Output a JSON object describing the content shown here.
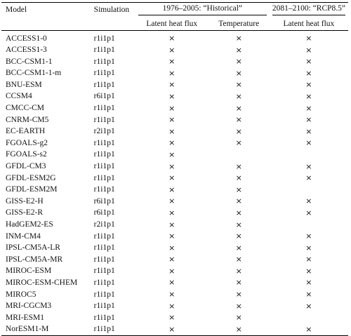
{
  "header": {
    "model": "Model",
    "simulation": "Simulation",
    "historical_period": "1976–2005: “Historical”",
    "rcp_period": "2081–2100: “RCP8.5”",
    "latent_heat_flux": "Latent heat flux",
    "temperature": "Temperature",
    "latent_heat_flux_rcp": "Latent heat flux"
  },
  "mark_symbol": "×",
  "rows": [
    {
      "model": "ACCESS1-0",
      "sim": "r1i1p1",
      "lh": true,
      "temp": true,
      "rcp": true
    },
    {
      "model": "ACCESS1-3",
      "sim": "r1i1p1",
      "lh": true,
      "temp": true,
      "rcp": true
    },
    {
      "model": "BCC-CSM1-1",
      "sim": "r1i1p1",
      "lh": true,
      "temp": true,
      "rcp": true
    },
    {
      "model": "BCC-CSM1-1-m",
      "sim": "r1i1p1",
      "lh": true,
      "temp": true,
      "rcp": true
    },
    {
      "model": "BNU-ESM",
      "sim": "r1i1p1",
      "lh": true,
      "temp": true,
      "rcp": true
    },
    {
      "model": "CCSM4",
      "sim": "r6i1p1",
      "lh": true,
      "temp": true,
      "rcp": true
    },
    {
      "model": "CMCC-CM",
      "sim": "r1i1p1",
      "lh": true,
      "temp": true,
      "rcp": true
    },
    {
      "model": "CNRM-CM5",
      "sim": "r1i1p1",
      "lh": true,
      "temp": true,
      "rcp": true
    },
    {
      "model": "EC-EARTH",
      "sim": "r2i1p1",
      "lh": true,
      "temp": true,
      "rcp": true
    },
    {
      "model": "FGOALS-g2",
      "sim": "r1i1p1",
      "lh": true,
      "temp": true,
      "rcp": true
    },
    {
      "model": "FGOALS-s2",
      "sim": "r1i1p1",
      "lh": true,
      "temp": false,
      "rcp": false
    },
    {
      "model": "GFDL-CM3",
      "sim": "r1i1p1",
      "lh": true,
      "temp": true,
      "rcp": true
    },
    {
      "model": "GFDL-ESM2G",
      "sim": "r1i1p1",
      "lh": true,
      "temp": true,
      "rcp": true
    },
    {
      "model": "GFDL-ESM2M",
      "sim": "r1i1p1",
      "lh": true,
      "temp": true,
      "rcp": false
    },
    {
      "model": "GISS-E2-H",
      "sim": "r6i1p1",
      "lh": true,
      "temp": true,
      "rcp": true
    },
    {
      "model": "GISS-E2-R",
      "sim": "r6i1p1",
      "lh": true,
      "temp": true,
      "rcp": true
    },
    {
      "model": "HadGEM2-ES",
      "sim": "r2i1p1",
      "lh": true,
      "temp": true,
      "rcp": false
    },
    {
      "model": "INM-CM4",
      "sim": "r1i1p1",
      "lh": true,
      "temp": true,
      "rcp": true
    },
    {
      "model": "IPSL-CM5A-LR",
      "sim": "r1i1p1",
      "lh": true,
      "temp": true,
      "rcp": true
    },
    {
      "model": "IPSL-CM5A-MR",
      "sim": "r1i1p1",
      "lh": true,
      "temp": true,
      "rcp": true
    },
    {
      "model": "MIROC-ESM",
      "sim": "r1i1p1",
      "lh": true,
      "temp": true,
      "rcp": true
    },
    {
      "model": "MIROC-ESM-CHEM",
      "sim": "r1i1p1",
      "lh": true,
      "temp": true,
      "rcp": true
    },
    {
      "model": "MIROC5",
      "sim": "r1i1p1",
      "lh": true,
      "temp": true,
      "rcp": true
    },
    {
      "model": "MRI-CGCM3",
      "sim": "r1i1p1",
      "lh": true,
      "temp": true,
      "rcp": true
    },
    {
      "model": "MRI-ESM1",
      "sim": "r1i1p1",
      "lh": true,
      "temp": true,
      "rcp": false
    },
    {
      "model": "NorESM1-M",
      "sim": "r1i1p1",
      "lh": true,
      "temp": true,
      "rcp": true
    }
  ]
}
